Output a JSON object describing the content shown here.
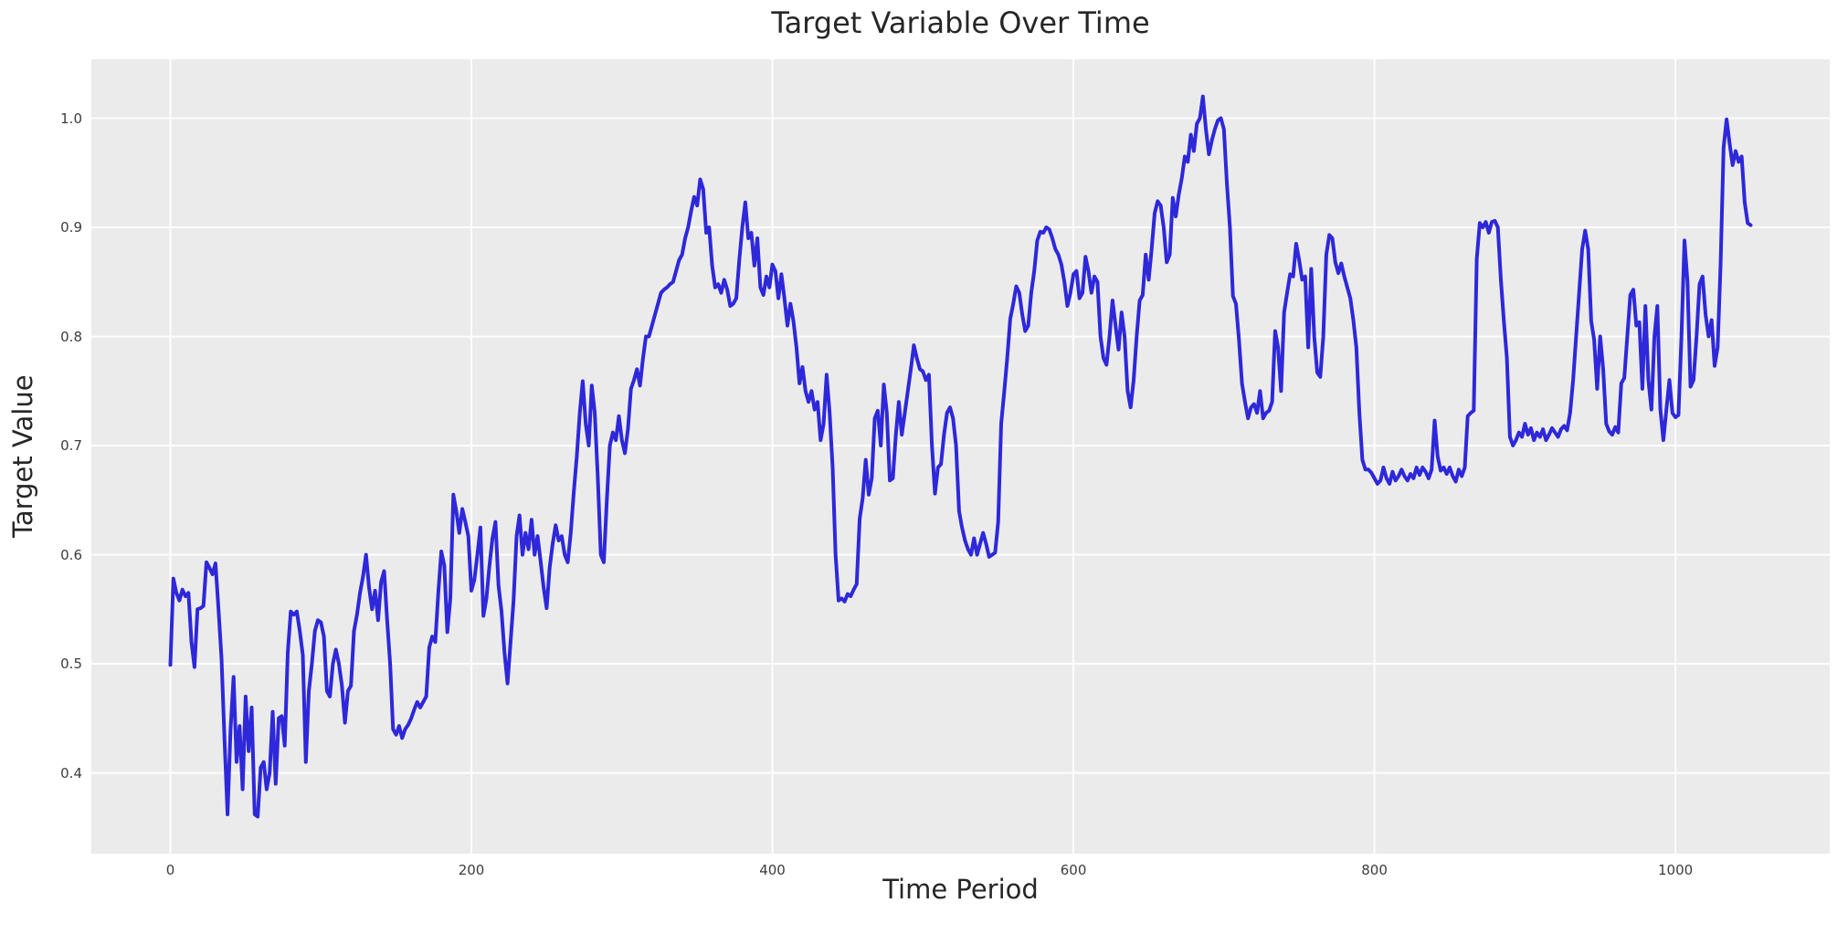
{
  "title": "Target Variable Over Time",
  "chart_data": {
    "type": "line",
    "title": "Target Variable Over Time",
    "xlabel": "Time Period",
    "ylabel": "Target Value",
    "x_ticks": [
      0,
      200,
      400,
      600,
      800,
      1000
    ],
    "y_ticks": [
      0.4,
      0.5,
      0.6,
      0.7,
      0.8,
      0.9,
      1.0
    ],
    "xlim": [
      -52.5,
      1102.5
    ],
    "ylim": [
      0.326,
      1.054
    ],
    "grid": true,
    "legend_position": "none",
    "plot_bg_color": "#ebebeb",
    "figure_bg_color": "#ffffff",
    "grid_color": "#ffffff",
    "line_color": "#2e28da",
    "line_width": 4,
    "x_start": 0,
    "x_step": 2,
    "values": [
      0.499,
      0.578,
      0.565,
      0.558,
      0.568,
      0.562,
      0.565,
      0.52,
      0.497,
      0.55,
      0.551,
      0.553,
      0.593,
      0.588,
      0.582,
      0.592,
      0.55,
      0.505,
      0.43,
      0.362,
      0.44,
      0.488,
      0.41,
      0.443,
      0.385,
      0.47,
      0.42,
      0.46,
      0.362,
      0.36,
      0.405,
      0.41,
      0.385,
      0.4,
      0.456,
      0.39,
      0.45,
      0.452,
      0.425,
      0.51,
      0.548,
      0.545,
      0.548,
      0.53,
      0.508,
      0.41,
      0.475,
      0.5,
      0.53,
      0.54,
      0.538,
      0.525,
      0.475,
      0.47,
      0.5,
      0.513,
      0.5,
      0.48,
      0.446,
      0.475,
      0.48,
      0.53,
      0.545,
      0.565,
      0.58,
      0.6,
      0.57,
      0.55,
      0.567,
      0.54,
      0.575,
      0.585,
      0.54,
      0.5,
      0.44,
      0.435,
      0.443,
      0.432,
      0.44,
      0.444,
      0.45,
      0.458,
      0.465,
      0.46,
      0.465,
      0.47,
      0.515,
      0.525,
      0.52,
      0.565,
      0.603,
      0.59,
      0.529,
      0.56,
      0.655,
      0.64,
      0.62,
      0.642,
      0.63,
      0.617,
      0.567,
      0.577,
      0.6,
      0.625,
      0.544,
      0.56,
      0.59,
      0.615,
      0.63,
      0.572,
      0.548,
      0.51,
      0.482,
      0.52,
      0.558,
      0.617,
      0.636,
      0.6,
      0.62,
      0.605,
      0.632,
      0.6,
      0.617,
      0.594,
      0.57,
      0.551,
      0.588,
      0.61,
      0.627,
      0.613,
      0.617,
      0.6,
      0.593,
      0.62,
      0.657,
      0.69,
      0.73,
      0.759,
      0.72,
      0.7,
      0.755,
      0.73,
      0.671,
      0.6,
      0.593,
      0.65,
      0.7,
      0.712,
      0.705,
      0.727,
      0.705,
      0.693,
      0.715,
      0.752,
      0.76,
      0.77,
      0.755,
      0.78,
      0.8,
      0.8,
      0.81,
      0.82,
      0.83,
      0.84,
      0.843,
      0.845,
      0.848,
      0.85,
      0.86,
      0.87,
      0.875,
      0.89,
      0.9,
      0.915,
      0.928,
      0.92,
      0.944,
      0.935,
      0.895,
      0.9,
      0.865,
      0.845,
      0.848,
      0.84,
      0.852,
      0.843,
      0.828,
      0.83,
      0.835,
      0.87,
      0.9,
      0.923,
      0.89,
      0.895,
      0.865,
      0.89,
      0.845,
      0.838,
      0.855,
      0.845,
      0.866,
      0.86,
      0.835,
      0.857,
      0.835,
      0.81,
      0.83,
      0.814,
      0.79,
      0.757,
      0.772,
      0.75,
      0.74,
      0.75,
      0.733,
      0.74,
      0.705,
      0.72,
      0.765,
      0.73,
      0.68,
      0.6,
      0.558,
      0.56,
      0.557,
      0.564,
      0.562,
      0.568,
      0.573,
      0.633,
      0.652,
      0.687,
      0.655,
      0.67,
      0.725,
      0.732,
      0.7,
      0.756,
      0.73,
      0.668,
      0.67,
      0.71,
      0.74,
      0.71,
      0.73,
      0.75,
      0.77,
      0.792,
      0.78,
      0.77,
      0.768,
      0.76,
      0.765,
      0.7,
      0.656,
      0.68,
      0.683,
      0.71,
      0.73,
      0.735,
      0.725,
      0.7,
      0.64,
      0.625,
      0.613,
      0.605,
      0.6,
      0.615,
      0.6,
      0.61,
      0.62,
      0.61,
      0.598,
      0.6,
      0.602,
      0.63,
      0.72,
      0.749,
      0.78,
      0.816,
      0.83,
      0.846,
      0.84,
      0.82,
      0.805,
      0.81,
      0.84,
      0.86,
      0.888,
      0.896,
      0.895,
      0.9,
      0.898,
      0.89,
      0.88,
      0.875,
      0.866,
      0.85,
      0.828,
      0.84,
      0.857,
      0.86,
      0.835,
      0.84,
      0.873,
      0.86,
      0.84,
      0.855,
      0.85,
      0.8,
      0.78,
      0.774,
      0.8,
      0.833,
      0.81,
      0.788,
      0.822,
      0.8,
      0.75,
      0.735,
      0.76,
      0.8,
      0.833,
      0.838,
      0.875,
      0.852,
      0.88,
      0.913,
      0.924,
      0.92,
      0.9,
      0.868,
      0.875,
      0.927,
      0.91,
      0.93,
      0.945,
      0.965,
      0.96,
      0.985,
      0.97,
      0.995,
      1.0,
      1.02,
      0.99,
      0.967,
      0.98,
      0.99,
      0.998,
      1.0,
      0.99,
      0.94,
      0.9,
      0.837,
      0.83,
      0.797,
      0.757,
      0.74,
      0.725,
      0.735,
      0.738,
      0.73,
      0.75,
      0.725,
      0.73,
      0.732,
      0.74,
      0.805,
      0.79,
      0.75,
      0.822,
      0.84,
      0.857,
      0.855,
      0.885,
      0.87,
      0.852,
      0.855,
      0.79,
      0.862,
      0.8,
      0.767,
      0.763,
      0.8,
      0.875,
      0.893,
      0.89,
      0.868,
      0.858,
      0.867,
      0.855,
      0.845,
      0.835,
      0.815,
      0.79,
      0.73,
      0.687,
      0.678,
      0.678,
      0.675,
      0.67,
      0.665,
      0.668,
      0.68,
      0.67,
      0.665,
      0.676,
      0.668,
      0.672,
      0.678,
      0.672,
      0.668,
      0.674,
      0.67,
      0.68,
      0.673,
      0.68,
      0.676,
      0.67,
      0.678,
      0.723,
      0.69,
      0.677,
      0.68,
      0.674,
      0.68,
      0.672,
      0.667,
      0.678,
      0.672,
      0.68,
      0.727,
      0.73,
      0.732,
      0.871,
      0.904,
      0.9,
      0.905,
      0.895,
      0.905,
      0.906,
      0.9,
      0.852,
      0.814,
      0.78,
      0.708,
      0.7,
      0.705,
      0.712,
      0.708,
      0.72,
      0.71,
      0.716,
      0.705,
      0.712,
      0.708,
      0.715,
      0.705,
      0.71,
      0.716,
      0.712,
      0.708,
      0.715,
      0.718,
      0.714,
      0.73,
      0.76,
      0.8,
      0.84,
      0.88,
      0.897,
      0.88,
      0.814,
      0.797,
      0.752,
      0.8,
      0.77,
      0.72,
      0.713,
      0.71,
      0.717,
      0.712,
      0.757,
      0.762,
      0.8,
      0.838,
      0.843,
      0.81,
      0.813,
      0.752,
      0.828,
      0.76,
      0.733,
      0.8,
      0.828,
      0.733,
      0.705,
      0.733,
      0.76,
      0.73,
      0.726,
      0.728,
      0.8,
      0.888,
      0.85,
      0.754,
      0.76,
      0.8,
      0.848,
      0.855,
      0.82,
      0.8,
      0.815,
      0.773,
      0.79,
      0.865,
      0.973,
      0.999,
      0.977,
      0.957,
      0.97,
      0.96,
      0.965,
      0.923,
      0.904,
      0.902
    ]
  }
}
